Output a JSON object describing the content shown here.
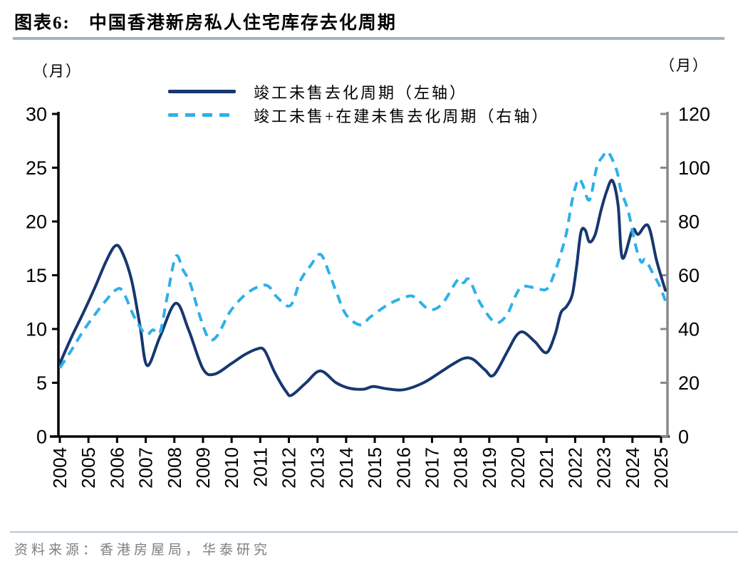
{
  "header": {
    "label": "图表6:",
    "title": "中国香港新房私人住宅库存去化周期"
  },
  "axes_units": {
    "left": "（月）",
    "right": "（月）"
  },
  "footer": {
    "source": "资料来源：香港房屋局，华泰研究"
  },
  "colors": {
    "navy": "#17376F",
    "cyan": "#2EB0E8",
    "left_axis": "#000000",
    "right_axis": "#888888",
    "title_divider": "#9FB4C7",
    "footer_divider": "#B9C8D3",
    "source_text": "#7F7F7F"
  },
  "chart_data": {
    "type": "line",
    "title": "中国香港新房私人住宅库存去化周期",
    "grid": false,
    "legend_position": "top-center",
    "left_axis": {
      "unit": "（月）",
      "min": 0,
      "max": 30,
      "ticks": [
        0,
        5,
        10,
        15,
        20,
        25,
        30
      ]
    },
    "right_axis": {
      "unit": "（月）",
      "min": 0,
      "max": 120,
      "ticks": [
        0,
        20,
        40,
        60,
        80,
        100,
        120
      ]
    },
    "x_axis": {
      "min": 2004,
      "max": 2025.25,
      "tick_step": 1,
      "tick_labels": [
        "2004",
        "2005",
        "2006",
        "2007",
        "2008",
        "2009",
        "2010",
        "2011",
        "2012",
        "2013",
        "2014",
        "2015",
        "2016",
        "2017",
        "2018",
        "2019",
        "2020",
        "2021",
        "2022",
        "2023",
        "2024",
        "2025"
      ]
    },
    "series": [
      {
        "name": "竣工未售去化周期（左轴）",
        "axis": "left",
        "style": "solid",
        "color": "#17376F",
        "points": [
          [
            2004.0,
            6.8
          ],
          [
            2004.4,
            9.2
          ],
          [
            2004.8,
            11.4
          ],
          [
            2005.2,
            13.7
          ],
          [
            2005.6,
            16.2
          ],
          [
            2005.92,
            17.7
          ],
          [
            2006.15,
            17.3
          ],
          [
            2006.5,
            14.6
          ],
          [
            2006.8,
            10.3
          ],
          [
            2007.05,
            6.6
          ],
          [
            2007.5,
            9.3
          ],
          [
            2008.05,
            12.4
          ],
          [
            2008.5,
            9.9
          ],
          [
            2009.0,
            6.3
          ],
          [
            2009.4,
            5.8
          ],
          [
            2010.0,
            6.8
          ],
          [
            2010.45,
            7.6
          ],
          [
            2010.9,
            8.15
          ],
          [
            2011.15,
            8.0
          ],
          [
            2011.5,
            6.0
          ],
          [
            2011.9,
            4.2
          ],
          [
            2012.1,
            3.85
          ],
          [
            2012.6,
            5.0
          ],
          [
            2013.1,
            6.1
          ],
          [
            2013.65,
            5.0
          ],
          [
            2014.1,
            4.5
          ],
          [
            2014.6,
            4.4
          ],
          [
            2014.95,
            4.65
          ],
          [
            2015.4,
            4.45
          ],
          [
            2016.0,
            4.35
          ],
          [
            2016.7,
            5.0
          ],
          [
            2017.3,
            6.0
          ],
          [
            2017.8,
            6.85
          ],
          [
            2018.15,
            7.3
          ],
          [
            2018.45,
            7.15
          ],
          [
            2018.85,
            6.2
          ],
          [
            2019.15,
            5.7
          ],
          [
            2019.65,
            8.0
          ],
          [
            2019.95,
            9.4
          ],
          [
            2020.2,
            9.7
          ],
          [
            2020.6,
            8.8
          ],
          [
            2021.0,
            7.8
          ],
          [
            2021.3,
            9.5
          ],
          [
            2021.5,
            11.5
          ],
          [
            2021.7,
            12.1
          ],
          [
            2021.9,
            13.2
          ],
          [
            2022.05,
            15.8
          ],
          [
            2022.2,
            19.0
          ],
          [
            2022.35,
            19.2
          ],
          [
            2022.5,
            18.1
          ],
          [
            2022.7,
            18.8
          ],
          [
            2022.9,
            21.0
          ],
          [
            2023.1,
            22.8
          ],
          [
            2023.3,
            23.8
          ],
          [
            2023.5,
            21.5
          ],
          [
            2023.65,
            16.6
          ],
          [
            2024.0,
            19.2
          ],
          [
            2024.2,
            18.8
          ],
          [
            2024.55,
            19.6
          ],
          [
            2024.85,
            16.3
          ],
          [
            2025.15,
            13.6
          ]
        ]
      },
      {
        "name": "竣工未售+在建未售去化周期（右轴）",
        "axis": "right",
        "style": "dashed",
        "color": "#2EB0E8",
        "points": [
          [
            2004.0,
            25.5
          ],
          [
            2004.4,
            32
          ],
          [
            2004.8,
            39
          ],
          [
            2005.2,
            45
          ],
          [
            2005.6,
            50.5
          ],
          [
            2005.95,
            54.5
          ],
          [
            2006.2,
            54
          ],
          [
            2006.6,
            44.5
          ],
          [
            2007.0,
            38
          ],
          [
            2007.25,
            39.7
          ],
          [
            2007.5,
            38.8
          ],
          [
            2007.75,
            52
          ],
          [
            2008.05,
            67
          ],
          [
            2008.3,
            62
          ],
          [
            2008.55,
            57
          ],
          [
            2008.9,
            44.5
          ],
          [
            2009.2,
            36.5
          ],
          [
            2009.5,
            37.5
          ],
          [
            2009.95,
            46.5
          ],
          [
            2010.5,
            53
          ],
          [
            2011.0,
            56
          ],
          [
            2011.3,
            55.8
          ],
          [
            2011.6,
            51.7
          ],
          [
            2012.05,
            48.7
          ],
          [
            2012.4,
            58
          ],
          [
            2012.75,
            63.5
          ],
          [
            2013.1,
            67.8
          ],
          [
            2013.4,
            61
          ],
          [
            2013.65,
            54
          ],
          [
            2014.0,
            45.3
          ],
          [
            2014.5,
            41.5
          ],
          [
            2014.85,
            44.5
          ],
          [
            2015.5,
            49.3
          ],
          [
            2016.1,
            52
          ],
          [
            2016.4,
            51.8
          ],
          [
            2016.9,
            47.3
          ],
          [
            2017.35,
            49.3
          ],
          [
            2017.9,
            58.3
          ],
          [
            2018.1,
            57.2
          ],
          [
            2018.3,
            58.3
          ],
          [
            2018.7,
            49.3
          ],
          [
            2019.2,
            42.5
          ],
          [
            2019.6,
            45
          ],
          [
            2019.9,
            52
          ],
          [
            2020.15,
            55.8
          ],
          [
            2020.6,
            55.3
          ],
          [
            2021.0,
            54.8
          ],
          [
            2021.25,
            60
          ],
          [
            2021.5,
            68
          ],
          [
            2021.7,
            76
          ],
          [
            2021.9,
            88
          ],
          [
            2022.1,
            95.5
          ],
          [
            2022.25,
            94
          ],
          [
            2022.5,
            88
          ],
          [
            2022.75,
            100
          ],
          [
            2022.95,
            104
          ],
          [
            2023.15,
            105.8
          ],
          [
            2023.45,
            99
          ],
          [
            2023.6,
            91.5
          ],
          [
            2023.85,
            84
          ],
          [
            2024.1,
            71.5
          ],
          [
            2024.3,
            65
          ],
          [
            2024.45,
            65.8
          ],
          [
            2024.7,
            61
          ],
          [
            2024.95,
            56
          ],
          [
            2025.15,
            50.5
          ]
        ]
      }
    ]
  }
}
